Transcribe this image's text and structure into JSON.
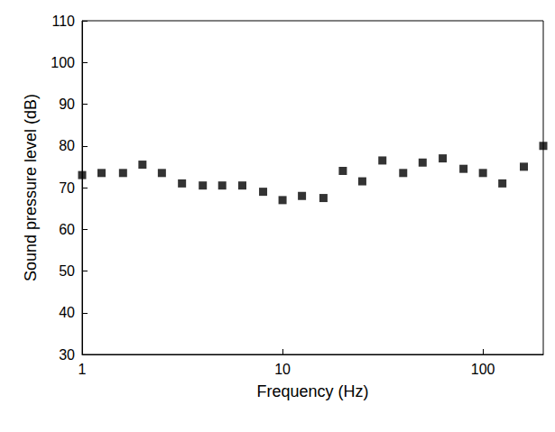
{
  "chart_data": {
    "type": "scatter",
    "x_label": "Frequency (Hz)",
    "y_label": "Sound pressure level (dB)",
    "x": [
      1,
      1.25,
      1.6,
      2,
      2.5,
      3.15,
      4,
      5,
      6.3,
      8,
      10,
      12.5,
      16,
      20,
      25,
      31.5,
      40,
      50,
      63,
      80,
      100,
      125,
      160,
      200
    ],
    "values": [
      73,
      73.5,
      73.5,
      75.5,
      73.5,
      71,
      70.5,
      70.5,
      70.5,
      69,
      67,
      68,
      67.5,
      74,
      71.5,
      76.5,
      73.5,
      76,
      77,
      74.5,
      73.5,
      71,
      75,
      80
    ],
    "color": "#000000",
    "marker": "square",
    "log": "x",
    "grid": false,
    "xlim": [
      1,
      200
    ],
    "xticks": [
      1,
      10,
      100
    ],
    "ylim": [
      30,
      110
    ],
    "yticks": [
      30,
      40,
      50,
      60,
      70,
      80,
      90,
      100,
      110
    ]
  }
}
